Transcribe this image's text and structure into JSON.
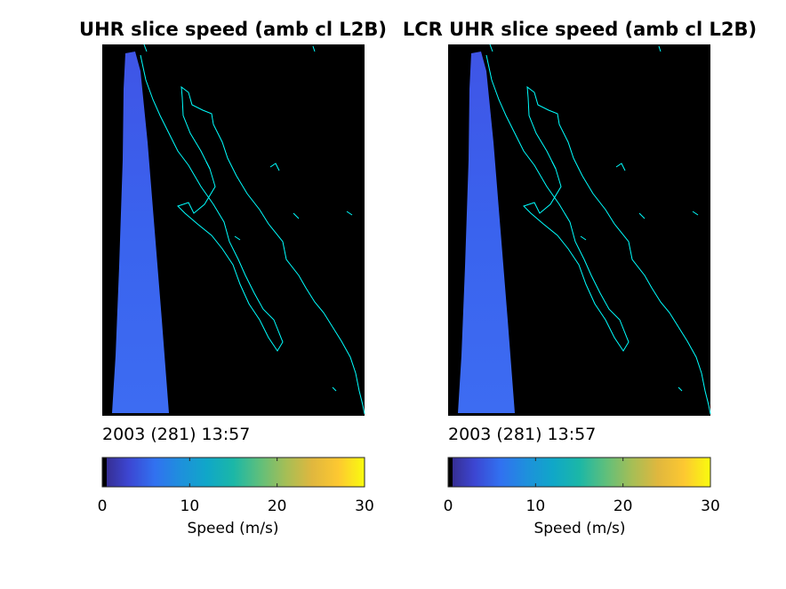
{
  "chart_data": [
    {
      "type": "heatmap",
      "title": "UHR slice speed (amb cl L2B)",
      "date_label": "2003 (281) 13:57",
      "colorbar": {
        "label": "Speed (m/s)",
        "range": [
          0,
          30
        ],
        "ticks": [
          0,
          10,
          20,
          30
        ],
        "tick_labels": [
          "0",
          "10",
          "20",
          "30"
        ],
        "colormap": "parula"
      },
      "swath_speed_mps": 4,
      "coastline_color": "#00ffff",
      "background_color": "#000000"
    },
    {
      "type": "heatmap",
      "title": "LCR UHR slice speed (amb cl L2B)",
      "date_label": "2003 (281) 13:57",
      "colorbar": {
        "label": "Speed (m/s)",
        "range": [
          0,
          30
        ],
        "ticks": [
          0,
          10,
          20,
          30
        ],
        "tick_labels": [
          "0",
          "10",
          "20",
          "30"
        ],
        "colormap": "parula"
      },
      "swath_speed_mps": 4,
      "coastline_color": "#00ffff",
      "background_color": "#000000"
    }
  ]
}
